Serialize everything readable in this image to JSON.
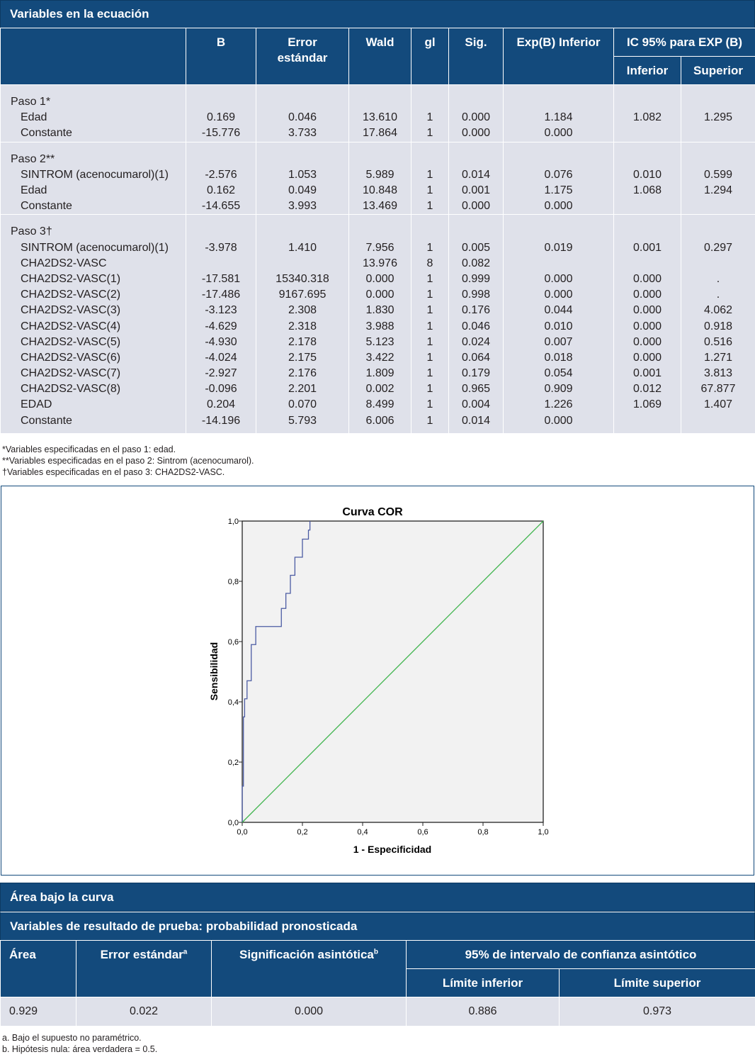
{
  "table1": {
    "title": "Variables en la ecuación",
    "headers": {
      "b": "B",
      "error": "Error estándar",
      "wald": "Wald",
      "gl": "gl",
      "sig": "Sig.",
      "expb": "Exp(B) Inferior",
      "ic": "IC 95% para EXP (B)",
      "inferior": "Inferior",
      "superior": "Superior"
    },
    "steps": [
      {
        "label": "Paso 1*",
        "rows": [
          [
            "Edad",
            "0.169",
            "0.046",
            "13.610",
            "1",
            "0.000",
            "1.184",
            "1.082",
            "1.295"
          ],
          [
            "Constante",
            "-15.776",
            "3.733",
            "17.864",
            "1",
            "0.000",
            "0.000",
            "",
            ""
          ]
        ]
      },
      {
        "label": "Paso 2**",
        "rows": [
          [
            "SINTROM (acenocumarol)(1)",
            "-2.576",
            "1.053",
            "5.989",
            "1",
            "0.014",
            "0.076",
            "0.010",
            "0.599"
          ],
          [
            "Edad",
            "0.162",
            "0.049",
            "10.848",
            "1",
            "0.001",
            "1.175",
            "1.068",
            "1.294"
          ],
          [
            "Constante",
            "-14.655",
            "3.993",
            "13.469",
            "1",
            "0.000",
            "0.000",
            "",
            ""
          ]
        ]
      },
      {
        "label": "Paso 3†",
        "rows": [
          [
            "SINTROM (acenocumarol)(1)",
            "-3.978",
            "1.410",
            "7.956",
            "1",
            "0.005",
            "0.019",
            "0.001",
            "0.297"
          ],
          [
            "CHA2DS2-VASC",
            "",
            "",
            "13.976",
            "8",
            "0.082",
            "",
            "",
            ""
          ],
          [
            "CHA2DS2-VASC(1)",
            "-17.581",
            "15340.318",
            "0.000",
            "1",
            "0.999",
            "0.000",
            "0.000",
            "."
          ],
          [
            "CHA2DS2-VASC(2)",
            "-17.486",
            "9167.695",
            "0.000",
            "1",
            "0.998",
            "0.000",
            "0.000",
            "."
          ],
          [
            "CHA2DS2-VASC(3)",
            "-3.123",
            "2.308",
            "1.830",
            "1",
            "0.176",
            "0.044",
            "0.000",
            "4.062"
          ],
          [
            "CHA2DS2-VASC(4)",
            "-4.629",
            "2.318",
            "3.988",
            "1",
            "0.046",
            "0.010",
            "0.000",
            "0.918"
          ],
          [
            "CHA2DS2-VASC(5)",
            "-4.930",
            "2.178",
            "5.123",
            "1",
            "0.024",
            "0.007",
            "0.000",
            "0.516"
          ],
          [
            "CHA2DS2-VASC(6)",
            "-4.024",
            "2.175",
            "3.422",
            "1",
            "0.064",
            "0.018",
            "0.000",
            "1.271"
          ],
          [
            "CHA2DS2-VASC(7)",
            "-2.927",
            "2.176",
            "1.809",
            "1",
            "0.179",
            "0.054",
            "0.001",
            "3.813"
          ],
          [
            "CHA2DS2-VASC(8)",
            "-0.096",
            "2.201",
            "0.002",
            "1",
            "0.965",
            "0.909",
            "0.012",
            "67.877"
          ],
          [
            "EDAD",
            "0.204",
            "0.070",
            "8.499",
            "1",
            "0.004",
            "1.226",
            "1.069",
            "1.407"
          ],
          [
            "Constante",
            "-14.196",
            "5.793",
            "6.006",
            "1",
            "0.014",
            "0.000",
            "",
            ""
          ]
        ]
      }
    ],
    "footnotes": [
      "*Variables especificadas en el paso 1: edad.",
      "**Variables especificadas en el paso 2: Sintrom (acenocumarol).",
      "†Variables especificadas en el paso 3: CHA2DS2-VASC."
    ]
  },
  "chart_data": {
    "type": "line",
    "title": "Curva COR",
    "xlabel": "1 - Especificidad",
    "ylabel": "Sensibilidad",
    "xlim": [
      0,
      1
    ],
    "ylim": [
      0,
      1
    ],
    "xticks": [
      "0,0",
      "0,2",
      "0,4",
      "0,6",
      "0,8",
      "1,0"
    ],
    "yticks": [
      "0,0",
      "0,2",
      "0,4",
      "0,6",
      "0,8",
      "1,0"
    ],
    "series": [
      {
        "name": "ROC",
        "color": "#4b5ba3",
        "x": [
          0,
          0,
          0.004,
          0.004,
          0.008,
          0.008,
          0.016,
          0.016,
          0.03,
          0.03,
          0.045,
          0.045,
          0.13,
          0.13,
          0.145,
          0.145,
          0.16,
          0.16,
          0.175,
          0.175,
          0.19,
          0.19,
          0.2,
          0.2,
          0.22,
          0.22,
          0.225,
          0.225
        ],
        "y": [
          0,
          0.12,
          0.12,
          0.35,
          0.35,
          0.41,
          0.41,
          0.47,
          0.47,
          0.59,
          0.59,
          0.65,
          0.65,
          0.71,
          0.71,
          0.76,
          0.76,
          0.82,
          0.82,
          0.88,
          0.88,
          0.88,
          0.88,
          0.94,
          0.94,
          0.97,
          0.97,
          1.0
        ]
      },
      {
        "name": "Referencia",
        "color": "#3cb44b",
        "x": [
          0,
          1
        ],
        "y": [
          0,
          1
        ]
      }
    ]
  },
  "table2": {
    "title": "Área bajo la curva",
    "subtitle": "Variables de resultado de prueba: probabilidad pronosticada",
    "headers": {
      "area": "Área",
      "error": "Error estándar",
      "error_sup": "a",
      "sig": "Significación asintótica",
      "sig_sup": "b",
      "ic": "95% de intervalo de confianza asintótico",
      "lower": "Límite inferior",
      "upper": "Límite superior"
    },
    "row": [
      "0.929",
      "0.022",
      "0.000",
      "0.886",
      "0.973"
    ],
    "footnotes": [
      "a. Bajo el supuesto no paramétrico.",
      "b. Hipótesis nula: área verdadera = 0.5."
    ]
  }
}
